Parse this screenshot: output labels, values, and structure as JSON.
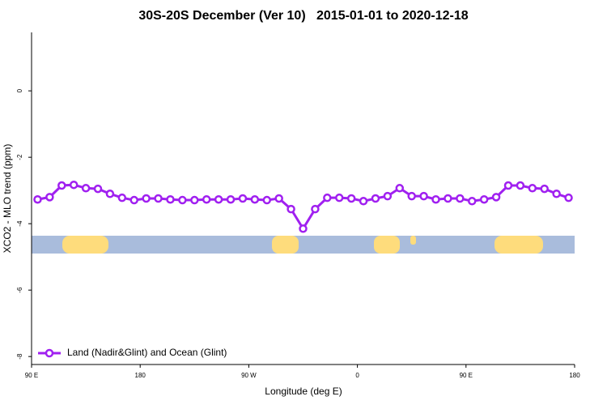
{
  "chart_data": {
    "type": "line",
    "title": "30S-20S December (Ver 10)   2015-01-01 to 2020-12-18",
    "x_label": "Longitude (deg E)",
    "y_label": "XCO2 - MLO trend (ppm)",
    "x": [
      95,
      105,
      115,
      125,
      135,
      145,
      155,
      165,
      175,
      185,
      195,
      205,
      215,
      225,
      235,
      245,
      255,
      265,
      275,
      285,
      295,
      305,
      315,
      325,
      335,
      345,
      355,
      365,
      375,
      385,
      395,
      405,
      415,
      425,
      435,
      445,
      455,
      465,
      475,
      485,
      495,
      505,
      515,
      525,
      535
    ],
    "series": [
      {
        "name": "Land (Nadir&Glint) and Ocean (Glint)",
        "color": "#a020f0",
        "values": [
          -3.27,
          -3.2,
          -2.85,
          -2.83,
          -2.93,
          -2.95,
          -3.1,
          -3.22,
          -3.29,
          -3.24,
          -3.24,
          -3.27,
          -3.29,
          -3.29,
          -3.27,
          -3.27,
          -3.27,
          -3.24,
          -3.27,
          -3.29,
          -3.24,
          -3.56,
          -4.15,
          -3.56,
          -3.22,
          -3.22,
          -3.24,
          -3.32,
          -3.24,
          -3.17,
          -2.93,
          -3.17,
          -3.17,
          -3.27,
          -3.24,
          -3.24,
          -3.32,
          -3.27,
          -3.2,
          -2.85,
          -2.85,
          -2.93,
          -2.95,
          -3.1,
          -3.22
        ]
      }
    ],
    "xlim": [
      90,
      540
    ],
    "xticks": [
      {
        "value": 90,
        "label": "90 E"
      },
      180,
      {
        "value": 270,
        "label": "90 W"
      },
      {
        "value": 360,
        "label": "0"
      },
      {
        "value": 450,
        "label": "90 E"
      },
      {
        "value": 540,
        "label": "180"
      }
    ],
    "ylim": [
      -8.24,
      1.76
    ],
    "yticks": [
      0,
      -2,
      -4,
      -6,
      -8
    ],
    "legend": "bottom-left"
  }
}
